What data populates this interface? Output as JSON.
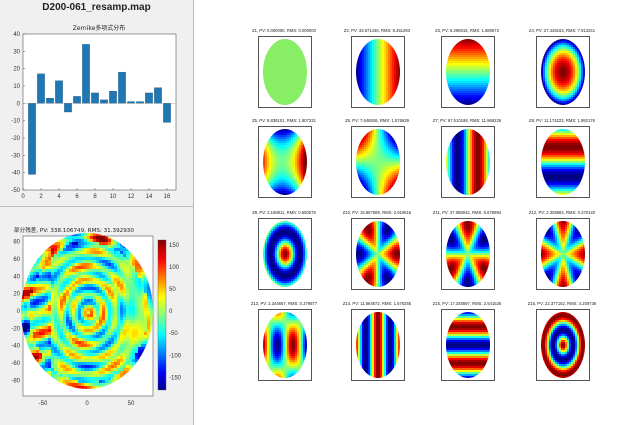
{
  "window": {
    "title": "D200-061_resamp.map"
  },
  "zernike_chart": {
    "title": "Zernike多项式分布",
    "yticks": [
      "40",
      "30",
      "20",
      "10",
      "0",
      "-10",
      "-20",
      "-30",
      "-40",
      "-50"
    ],
    "xticks": [
      "0",
      "2",
      "4",
      "6",
      "8",
      "10",
      "12",
      "14",
      "16"
    ],
    "chart_data": {
      "type": "bar",
      "title": "Zernike多项式分布",
      "categories": [
        1,
        2,
        3,
        4,
        5,
        6,
        7,
        8,
        9,
        10,
        11,
        12,
        13,
        14,
        15,
        16
      ],
      "values": [
        -41,
        17,
        3,
        13,
        -5,
        4,
        34,
        6,
        2,
        7,
        18,
        1,
        1,
        6,
        9,
        -11
      ],
      "ylim": [
        -50,
        40
      ],
      "xlim": [
        0,
        17
      ],
      "grid": false
    }
  },
  "residual_map": {
    "title": "部分残差, PV: 338.106749, RMS: 31.392930",
    "yticks": [
      "80",
      "60",
      "40",
      "20",
      "0",
      "-20",
      "-40",
      "-60",
      "-80"
    ],
    "xticks": [
      "-50",
      "0",
      "50"
    ],
    "colorbar_ticks": [
      "150",
      "100",
      "50",
      "0",
      "-50",
      "-100",
      "-150"
    ],
    "colormap": "jet"
  },
  "terms": [
    {
      "label": "Z1, PV: 0.000000, RMS: 0.000000"
    },
    {
      "label": "Z2, PV: 33.671446, RMS: 8.451293"
    },
    {
      "label": "Z3, PV: 6.290515, RMS: 1.580673"
    },
    {
      "label": "Z4, PV: 27.448163, RMS: 7.913241"
    },
    {
      "label": "Z5, PV: 8.839101, RMS: 1.807331"
    },
    {
      "label": "Z6, PV: 7.648926, RMS: 1.576639"
    },
    {
      "label": "Z7, PV: 67.510198, RMS: 11.968226"
    },
    {
      "label": "Z8, PV: 11.174223, RMS: 1.992176"
    },
    {
      "label": "Z9, PV: 2.168811, RMS: 0.650578"
    },
    {
      "label": "Z10, PV: 15.967589, RMS: 2.919616"
    },
    {
      "label": "Z11, PV: 37.085842, RMS: 6.678894"
    },
    {
      "label": "Z12, PV: 2.328984, RMS: 0.370140"
    },
    {
      "label": "Z13, PV: 2.344657, RMS: 0.379877"
    },
    {
      "label": "Z14, PV: 11.564872, RMS: 1.676255"
    },
    {
      "label": "Z15, PV: 17.348597, RMS: 2.541526"
    },
    {
      "label": "Z16, PV: 22.377152, RMS: 4.209736"
    }
  ]
}
